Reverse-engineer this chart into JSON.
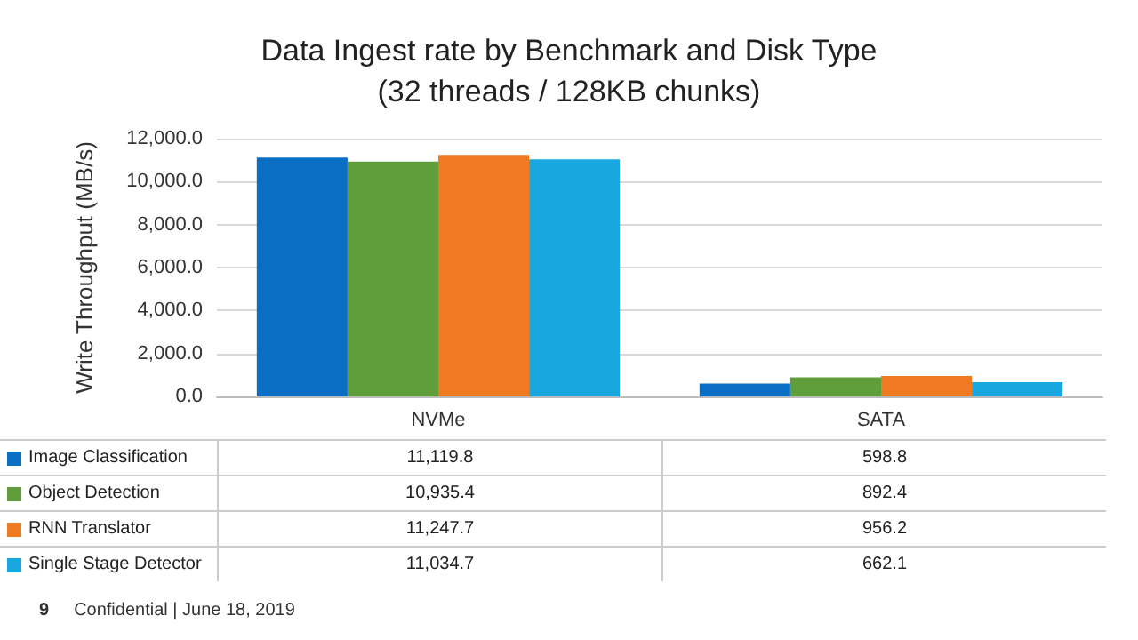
{
  "chart_data": {
    "type": "bar",
    "title": "Data Ingest rate by Benchmark and Disk Type\n(32 threads / 128KB chunks)",
    "ylabel": "Write Throughput (MB/s)",
    "categories": [
      "NVMe",
      "SATA"
    ],
    "series": [
      {
        "name": "Image Classification",
        "color": "#0a6fc4",
        "values": [
          11119.8,
          598.8
        ],
        "value_labels": [
          "11,119.8",
          "598.8"
        ]
      },
      {
        "name": "Object Detection",
        "color": "#5f9e3a",
        "values": [
          10935.4,
          892.4
        ],
        "value_labels": [
          "10,935.4",
          "892.4"
        ]
      },
      {
        "name": "RNN Translator",
        "color": "#f07a22",
        "values": [
          11247.7,
          956.2
        ],
        "value_labels": [
          "11,247.7",
          "956.2"
        ]
      },
      {
        "name": "Single Stage Detector",
        "color": "#19a7e0",
        "values": [
          11034.7,
          662.1
        ],
        "value_labels": [
          "11,034.7",
          "662.1"
        ]
      }
    ],
    "ylim": [
      0,
      12000
    ],
    "yticks": [
      {
        "value": 0,
        "label": "0.0"
      },
      {
        "value": 2000,
        "label": "2,000.0"
      },
      {
        "value": 4000,
        "label": "4,000.0"
      },
      {
        "value": 6000,
        "label": "6,000.0"
      },
      {
        "value": 8000,
        "label": "8,000.0"
      },
      {
        "value": 10000,
        "label": "10,000.0"
      },
      {
        "value": 12000,
        "label": "12,000.0"
      }
    ],
    "grid": "y",
    "legend": "bottom",
    "annotations": [
      "9",
      "Confidential | June 18, 2019"
    ]
  }
}
